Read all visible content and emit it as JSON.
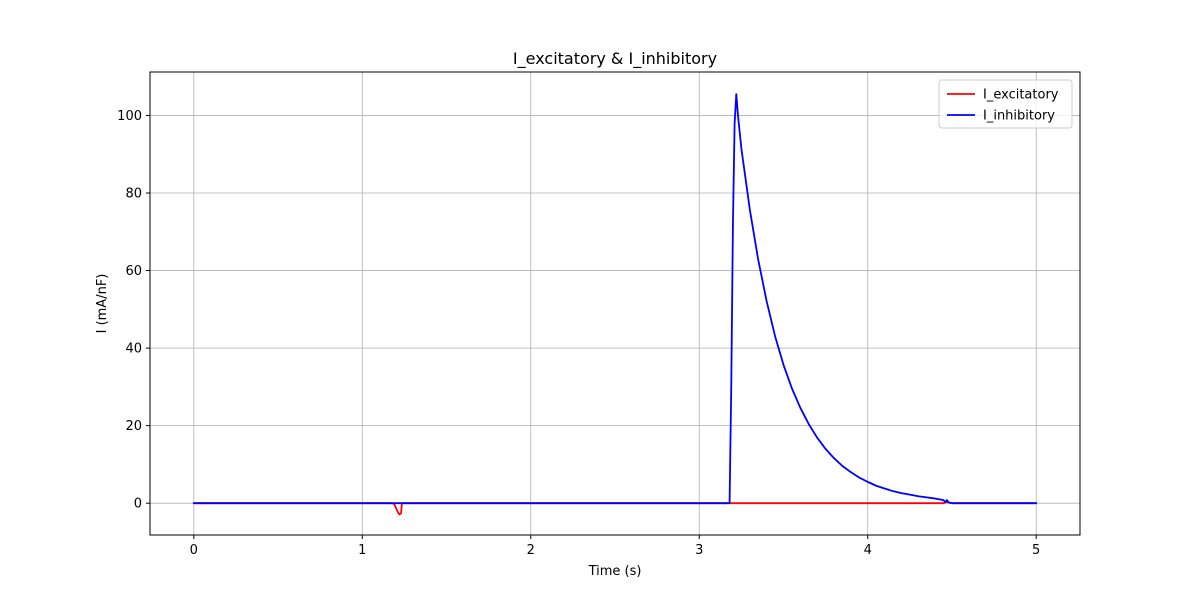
{
  "chart_data": {
    "type": "line",
    "title": "I_excitatory & I_inhibitory",
    "xlabel": "Time (s)",
    "ylabel": "I (mA/nF)",
    "xlim": [
      -0.26,
      5.26
    ],
    "ylim": [
      -8.2,
      111.2
    ],
    "xticks": [
      0,
      1,
      2,
      3,
      4,
      5
    ],
    "yticks": [
      0,
      20,
      40,
      60,
      80,
      100
    ],
    "grid": true,
    "legend_position": "top-right",
    "series": [
      {
        "name": "I_excitatory",
        "color": "#ff0000",
        "x": [
          0,
          1.18,
          1.19,
          1.2,
          1.21,
          1.22,
          1.23,
          1.235,
          1.25,
          3.0,
          4.45,
          4.47,
          4.5,
          5.0
        ],
        "y": [
          0,
          0,
          -0.3,
          -1.2,
          -2.2,
          -2.9,
          -2.6,
          0,
          0,
          0,
          0,
          0.3,
          0,
          0
        ]
      },
      {
        "name": "I_inhibitory",
        "color": "#0000ff",
        "x": [
          0,
          1.0,
          2.0,
          3.0,
          3.18,
          3.19,
          3.2,
          3.21,
          3.22,
          3.23,
          3.25,
          3.3,
          3.35,
          3.4,
          3.45,
          3.5,
          3.55,
          3.6,
          3.65,
          3.7,
          3.75,
          3.8,
          3.85,
          3.9,
          3.95,
          4.0,
          4.05,
          4.1,
          4.15,
          4.2,
          4.25,
          4.3,
          4.35,
          4.4,
          4.45,
          4.46,
          4.47,
          4.48,
          4.5,
          5.0
        ],
        "y": [
          0,
          0,
          0,
          0,
          0,
          30,
          72,
          98,
          105.5,
          100,
          91.5,
          75.8,
          62.8,
          52.1,
          43.1,
          35.7,
          29.6,
          24.6,
          20.4,
          16.9,
          14.0,
          11.6,
          9.6,
          8.0,
          6.6,
          5.5,
          4.5,
          3.8,
          3.1,
          2.6,
          2.2,
          1.8,
          1.5,
          1.2,
          0.8,
          0.3,
          0.8,
          0.2,
          0,
          0
        ]
      }
    ]
  }
}
